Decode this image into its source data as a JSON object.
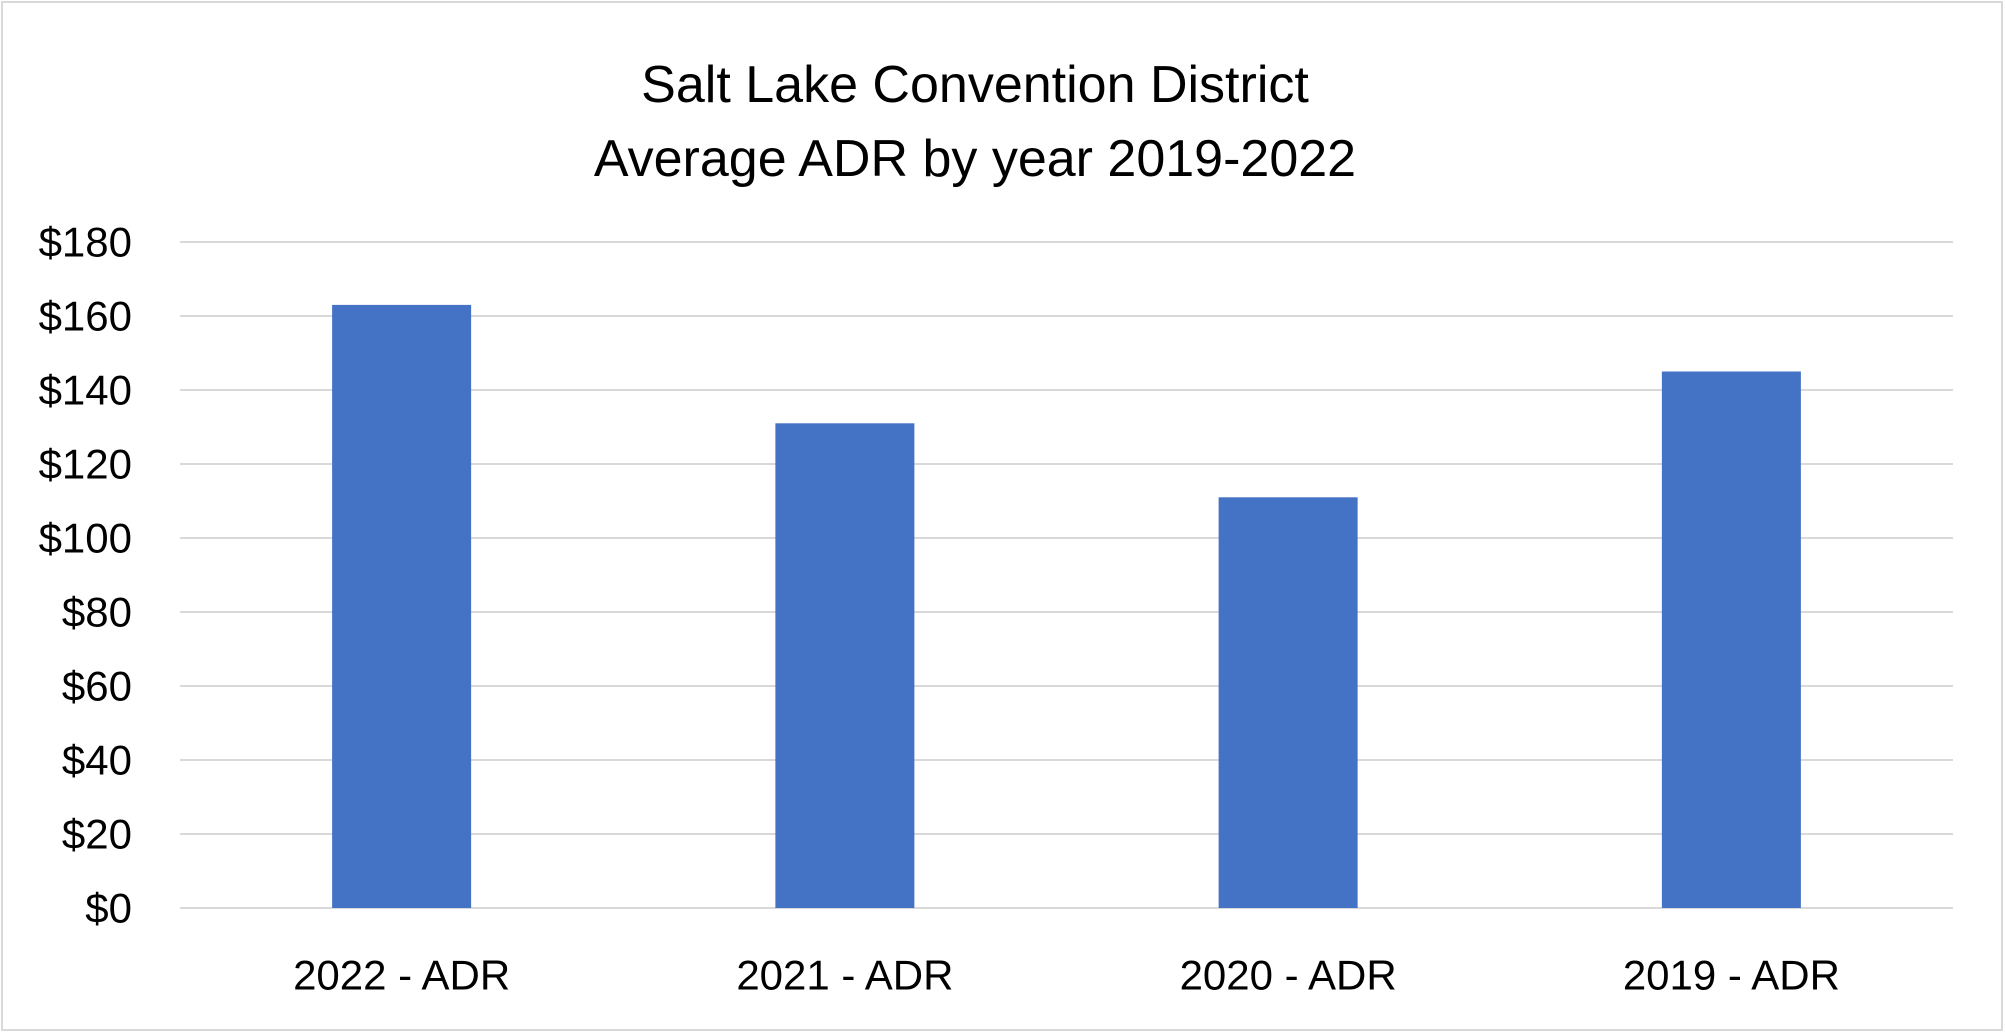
{
  "colors": {
    "bar": "#4472c4",
    "gridline": "#d9d9d9",
    "border": "#d9d9d9",
    "background": "#ffffff"
  },
  "chart_data": {
    "type": "bar",
    "title_lines": [
      "Salt Lake Convention District",
      "Average ADR by year 2019-2022"
    ],
    "categories": [
      "2022 - ADR",
      "2021 - ADR",
      "2020 - ADR",
      "2019 - ADR"
    ],
    "values": [
      163,
      131,
      111,
      145
    ],
    "ylim": [
      0,
      180
    ],
    "yticks": [
      0,
      20,
      40,
      60,
      80,
      100,
      120,
      140,
      160,
      180
    ],
    "ytick_labels": [
      "$0",
      "$20",
      "$40",
      "$60",
      "$80",
      "$100",
      "$120",
      "$140",
      "$160",
      "$180"
    ],
    "grid": true,
    "legend": "none"
  }
}
